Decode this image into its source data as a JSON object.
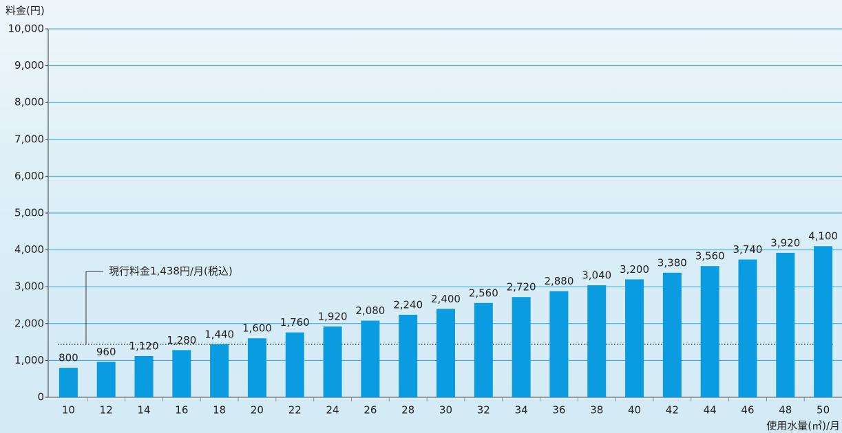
{
  "chart_data": {
    "type": "bar",
    "y_label": "料金(円)",
    "x_label": "使用水量(㎥)/月",
    "categories": [
      "10",
      "12",
      "14",
      "16",
      "18",
      "20",
      "22",
      "24",
      "26",
      "28",
      "30",
      "32",
      "34",
      "36",
      "38",
      "40",
      "42",
      "44",
      "46",
      "48",
      "50"
    ],
    "values": [
      800,
      960,
      1120,
      1280,
      1440,
      1600,
      1760,
      1920,
      2080,
      2240,
      2400,
      2560,
      2720,
      2880,
      3040,
      3200,
      3380,
      3560,
      3740,
      3920,
      4100
    ],
    "value_labels": [
      "800",
      "960",
      "1,120",
      "1,280",
      "1,440",
      "1,600",
      "1,760",
      "1,920",
      "2,080",
      "2,240",
      "2,400",
      "2,560",
      "2,720",
      "2,880",
      "3,040",
      "3,200",
      "3,380",
      "3,560",
      "3,740",
      "3,920",
      "4,100"
    ],
    "color": "#0a9be0",
    "ylim": [
      0,
      10000
    ],
    "yticks": [
      0,
      {
        "value": 1000,
        "label": "1,000"
      },
      {
        "value": 2000,
        "label": "2,000"
      },
      {
        "value": 3000,
        "label": "3,000"
      },
      {
        "value": 4000,
        "label": "4,000"
      },
      {
        "value": 5000,
        "label": "5,000"
      },
      {
        "value": 6000,
        "label": "6,000"
      },
      {
        "value": 7000,
        "label": "7,000"
      },
      {
        "value": 8000,
        "label": "8,000"
      },
      {
        "value": 9000,
        "label": "9,000"
      },
      {
        "value": 10000,
        "label": "10,000"
      }
    ],
    "grid": true,
    "reference_line": {
      "value": 1438,
      "label": "現行料金1,438円/月(税込)"
    }
  }
}
